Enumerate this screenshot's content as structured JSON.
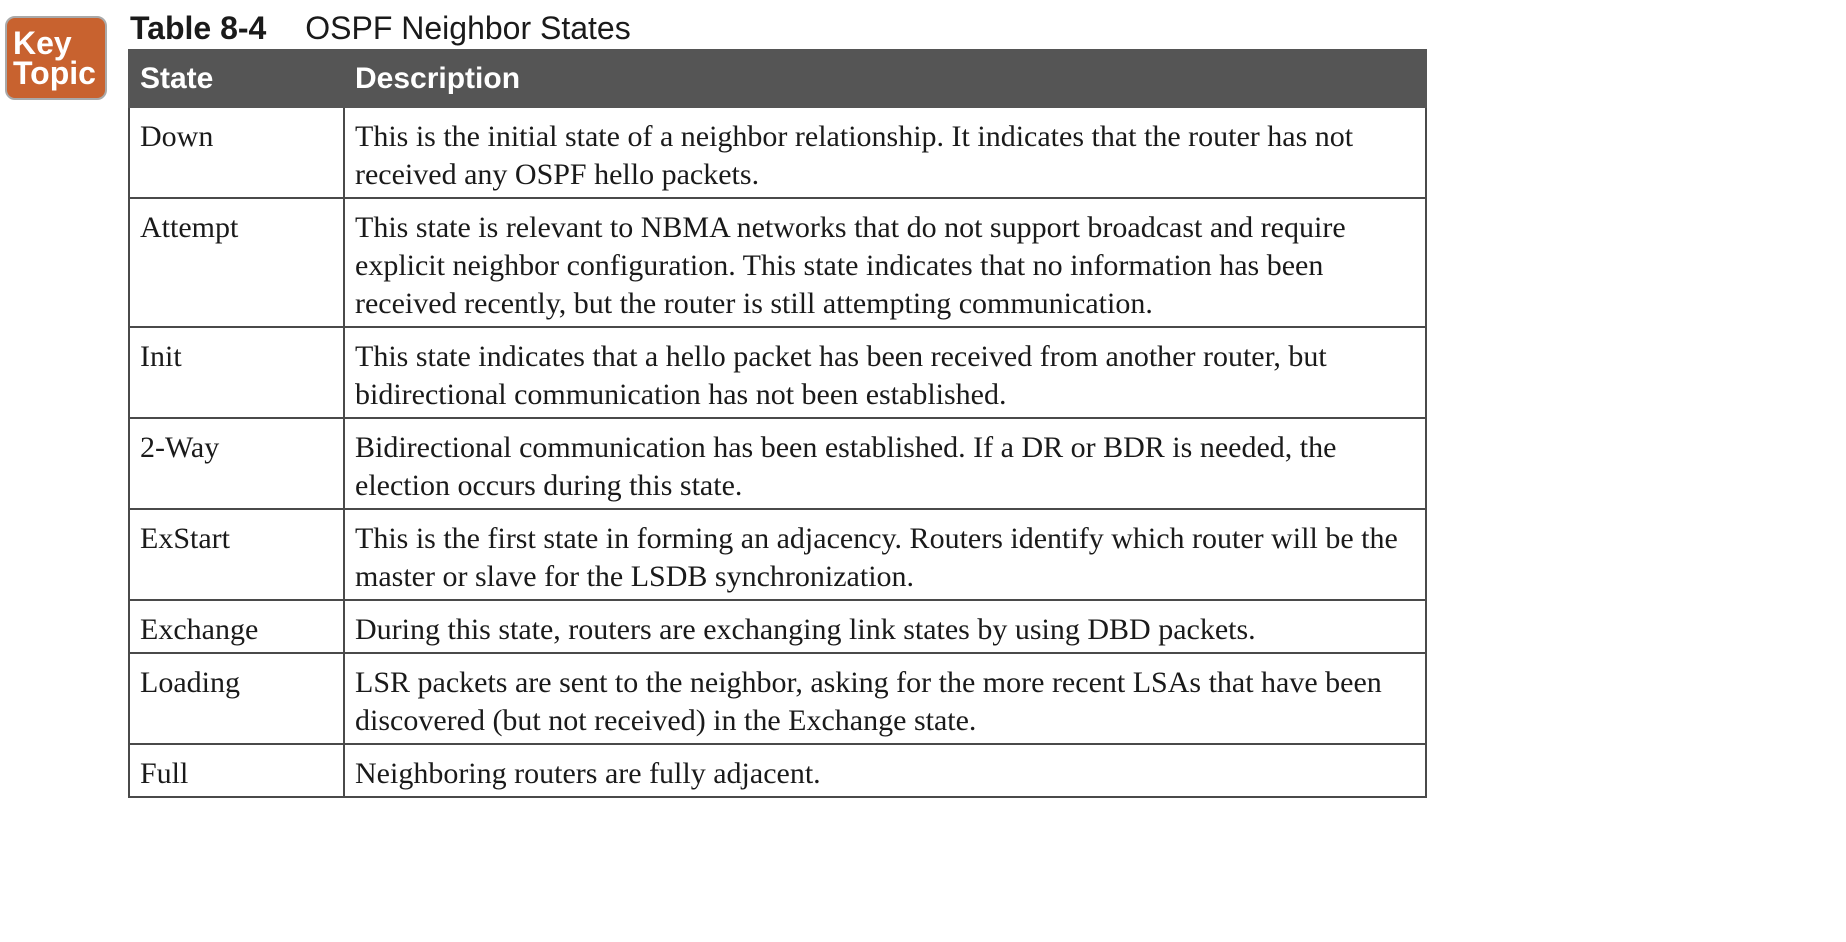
{
  "key_topic": {
    "line1": "Key",
    "line2": "Topic"
  },
  "title": {
    "number": "Table 8-4",
    "text": "OSPF Neighbor States"
  },
  "table": {
    "headers": [
      "State",
      "Description"
    ],
    "rows": [
      {
        "state": "Down",
        "description": "This is the initial state of a neighbor relationship. It indicates that the router has not received any OSPF hello packets."
      },
      {
        "state": "Attempt",
        "description": "This state is relevant to NBMA networks that do not support broadcast and require explicit neighbor configuration. This state indicates that no information has been received recently, but the router is still attempting communication."
      },
      {
        "state": "Init",
        "description": "This state indicates that a hello packet has been received from another router, but bidirectional communication has not been established."
      },
      {
        "state": "2-Way",
        "description": "Bidirectional communication has been established. If a DR or BDR is needed, the election occurs during this state."
      },
      {
        "state": "ExStart",
        "description": "This is the first state in forming an adjacency. Routers identify which router will be the master or slave for the LSDB synchronization."
      },
      {
        "state": "Exchange",
        "description": "During this state, routers are exchanging link states by using DBD packets."
      },
      {
        "state": "Loading",
        "description": "LSR packets are sent to the neighbor, asking for the more recent LSAs that have been discovered (but not received) in the Exchange state."
      },
      {
        "state": "Full",
        "description": "Neighboring routers are fully adjacent."
      }
    ]
  },
  "colors": {
    "key_topic_bg": "#c8622f",
    "header_bg": "#555555"
  }
}
